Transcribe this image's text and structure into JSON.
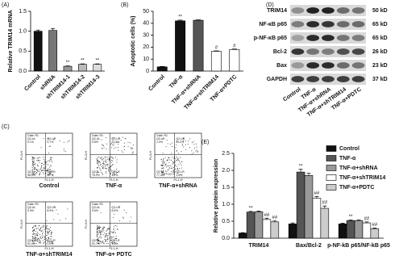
{
  "panel_labels": [
    "(A)",
    "(B)",
    "(C)",
    "(D)",
    "(E)"
  ],
  "chart_data": [
    {
      "type": "bar",
      "ylabel": "Relative TRIM14 mRNA",
      "categories": [
        "Control",
        "shRNA",
        "shTRIM14-1",
        "shTRIM14-2",
        "shTRIM14-3"
      ],
      "values": [
        1.0,
        1.02,
        0.12,
        0.17,
        0.17
      ],
      "errors": [
        0.03,
        0.05,
        0.01,
        0.01,
        0.01
      ],
      "significance": [
        null,
        null,
        "**",
        "**",
        "**"
      ],
      "colors": [
        "#111111",
        "#777777",
        "#999999",
        "#bbbbbb",
        "#dddddd"
      ],
      "ylim": [
        0,
        1.5
      ],
      "yticks": [
        {
          "value": 0,
          "label": "0.0"
        },
        0.5,
        {
          "value": 1,
          "label": "1.0"
        },
        1.5
      ]
    },
    {
      "type": "bar",
      "ylabel": "Apoptotic cells (%)",
      "categories": [
        "Control",
        "TNF-α",
        "TNF-α+shRNA",
        "TNF-α+shTRIM14",
        "TNF-α+PDTC"
      ],
      "values": [
        3.5,
        42,
        42.5,
        16.5,
        18
      ],
      "errors": [
        0.3,
        0.6,
        0.3,
        0.4,
        0.4
      ],
      "significance": [
        null,
        "**",
        null,
        "#",
        "#"
      ],
      "colors": [
        "#111111",
        "#111111",
        "#555555",
        "#ffffff",
        "#ffffff"
      ],
      "ylim": [
        0,
        50
      ],
      "yticks": [
        0,
        10,
        20,
        30,
        40,
        50
      ]
    },
    {
      "type": "bar",
      "ylabel": "Relative protein expression",
      "categories": [
        "TRIM14",
        "Bax/Bcl-2",
        "p-NF-kB p65/NF-kB p65"
      ],
      "series": [
        {
          "name": "Control",
          "color": "#111111",
          "values": [
            0.15,
            0.42,
            0.42
          ],
          "errors": [
            0.01,
            0.03,
            0.02
          ],
          "significance": [
            null,
            null,
            null
          ]
        },
        {
          "name": "TNF-α",
          "color": "#555555",
          "values": [
            0.77,
            1.95,
            0.52
          ],
          "errors": [
            0.02,
            0.08,
            0.02
          ],
          "significance": [
            "**",
            "**",
            "**"
          ]
        },
        {
          "name": "TNF-α+shRNA",
          "color": "#999999",
          "values": [
            0.78,
            1.85,
            0.52
          ],
          "errors": [
            0.02,
            0.06,
            0.02
          ],
          "significance": [
            null,
            null,
            null
          ]
        },
        {
          "name": "TNF-α+shTRIM14",
          "color": "#ffffff",
          "values": [
            0.55,
            1.18,
            0.45
          ],
          "errors": [
            0.04,
            0.05,
            0.03
          ],
          "significance": [
            "##",
            "##",
            "##"
          ]
        },
        {
          "name": "TNF-α+PDTC",
          "color": "#cccccc",
          "values": [
            0.48,
            0.88,
            0.28
          ],
          "errors": [
            0.03,
            0.07,
            0.02
          ],
          "significance": [
            "##",
            "##",
            "##"
          ]
        }
      ],
      "ylim": [
        0,
        2.5
      ],
      "yticks": [
        {
          "value": 0,
          "label": "0.0"
        },
        0.5,
        {
          "value": 1,
          "label": "1.0"
        },
        1.5,
        {
          "value": 2,
          "label": "2.0"
        },
        2.5
      ]
    }
  ],
  "flow_cytometry": {
    "y_label": "FL3-H",
    "x_label": "FL1-H",
    "gate": "Gate: R1",
    "quadrants": [
      "Q2-UL",
      "Q2-UR",
      "Q2-LL",
      "Q2-LR"
    ],
    "plots": [
      {
        "label": "Control",
        "percentages": [
          "0.1%",
          "0.7%",
          "98.5%",
          "0.7%"
        ]
      },
      {
        "label": "TNF-α",
        "percentages": [
          "0.8%",
          "22.6%",
          "75.1%",
          "1.5%"
        ]
      },
      {
        "label": "TNF-α+shRNA",
        "percentages": [
          "1.0%",
          "20.0%",
          "77.4%",
          "1.6%"
        ]
      },
      {
        "label": "TNF-α+shTRIM14",
        "percentages": [
          "0.9%",
          "6.9%",
          "91.0%",
          "1.2%"
        ]
      },
      {
        "label": "TNF-α+ PDTC",
        "percentages": [
          "0.6%",
          "6.5%",
          "91.7%",
          "1.2%"
        ]
      }
    ]
  },
  "western_blot": {
    "proteins": [
      "TRIM14",
      "NF-κB p65",
      "p-NF-κB p65",
      "Bcl-2",
      "Bax",
      "GAPDH"
    ],
    "sizes": [
      "50 kD",
      "65 kD",
      "65 kD",
      "26 kD",
      "23 kD",
      "37 kD"
    ],
    "lanes": [
      "Control",
      "TNF-α",
      "TNF-α+shRNA",
      "TNF-α+shTRIM14",
      "TNF-α+PDTC"
    ]
  }
}
